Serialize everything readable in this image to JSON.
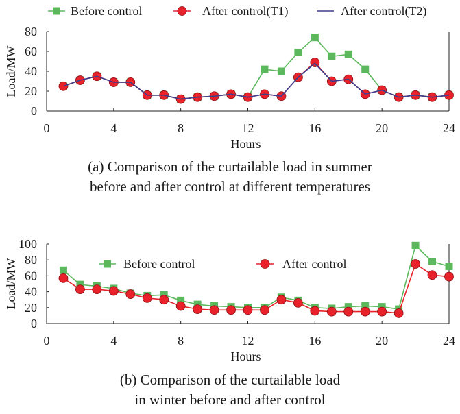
{
  "chart_data": [
    {
      "type": "line",
      "id": "summer",
      "xlabel": "Hours",
      "ylabel": "Load/MW",
      "xlim": [
        0,
        24
      ],
      "ylim": [
        0,
        80
      ],
      "xticks": [
        0,
        4,
        8,
        12,
        16,
        20,
        24
      ],
      "yticks": [
        0,
        20,
        40,
        60,
        80
      ],
      "legend_position": "top",
      "x": [
        1,
        2,
        3,
        4,
        5,
        6,
        7,
        8,
        9,
        10,
        11,
        12,
        13,
        14,
        15,
        16,
        17,
        18,
        19,
        20,
        21,
        22,
        23,
        24
      ],
      "series": [
        {
          "name": "Before control",
          "color": "#5cb85c",
          "marker": "square",
          "values": [
            25,
            31,
            35,
            29,
            29,
            16,
            16,
            12,
            14,
            15,
            17,
            14,
            42,
            40,
            59,
            74,
            55,
            57,
            42,
            21,
            14,
            16,
            14,
            16
          ]
        },
        {
          "name": "After control(T1)",
          "color": "#e8212b",
          "marker": "circle",
          "values": [
            25,
            31,
            35,
            29,
            29,
            16,
            16,
            12,
            14,
            15,
            17,
            14,
            17,
            15,
            34,
            49,
            30,
            32,
            17,
            21,
            14,
            16,
            14,
            16
          ]
        },
        {
          "name": "After control(T2)",
          "color": "#3a3f8f",
          "marker": "none",
          "values": [
            25,
            31,
            35,
            29,
            29,
            16,
            16,
            12,
            14,
            15,
            17,
            14,
            17,
            15,
            34,
            48,
            30,
            32,
            17,
            21,
            14,
            16,
            14,
            16
          ]
        }
      ],
      "caption_lines": [
        "(a) Comparison of the curtailable load in summer",
        "before and after control at different temperatures"
      ]
    },
    {
      "type": "line",
      "id": "winter",
      "xlabel": "Hours",
      "ylabel": "Load/MW",
      "xlim": [
        0,
        24
      ],
      "ylim": [
        0,
        100
      ],
      "xticks": [
        0,
        4,
        8,
        12,
        16,
        20,
        24
      ],
      "yticks": [
        0,
        20,
        40,
        60,
        80,
        100
      ],
      "legend_position": "top-center",
      "x": [
        1,
        2,
        3,
        4,
        5,
        6,
        7,
        8,
        9,
        10,
        11,
        12,
        13,
        14,
        15,
        16,
        17,
        18,
        19,
        20,
        21,
        22,
        23,
        24
      ],
      "series": [
        {
          "name": "Before control",
          "color": "#5cb85c",
          "marker": "square",
          "values": [
            67,
            49,
            47,
            44,
            38,
            35,
            36,
            29,
            24,
            22,
            21,
            20,
            20,
            33,
            29,
            20,
            19,
            21,
            22,
            21,
            18,
            98,
            78,
            72
          ]
        },
        {
          "name": "After control",
          "color": "#e8212b",
          "marker": "circle",
          "values": [
            57,
            43,
            43,
            41,
            37,
            32,
            30,
            22,
            18,
            17,
            17,
            17,
            17,
            30,
            26,
            16,
            15,
            15,
            15,
            15,
            13,
            75,
            61,
            59
          ]
        }
      ],
      "caption_lines": [
        "(b) Comparison of the curtailable load",
        "in winter before and after control"
      ]
    }
  ]
}
